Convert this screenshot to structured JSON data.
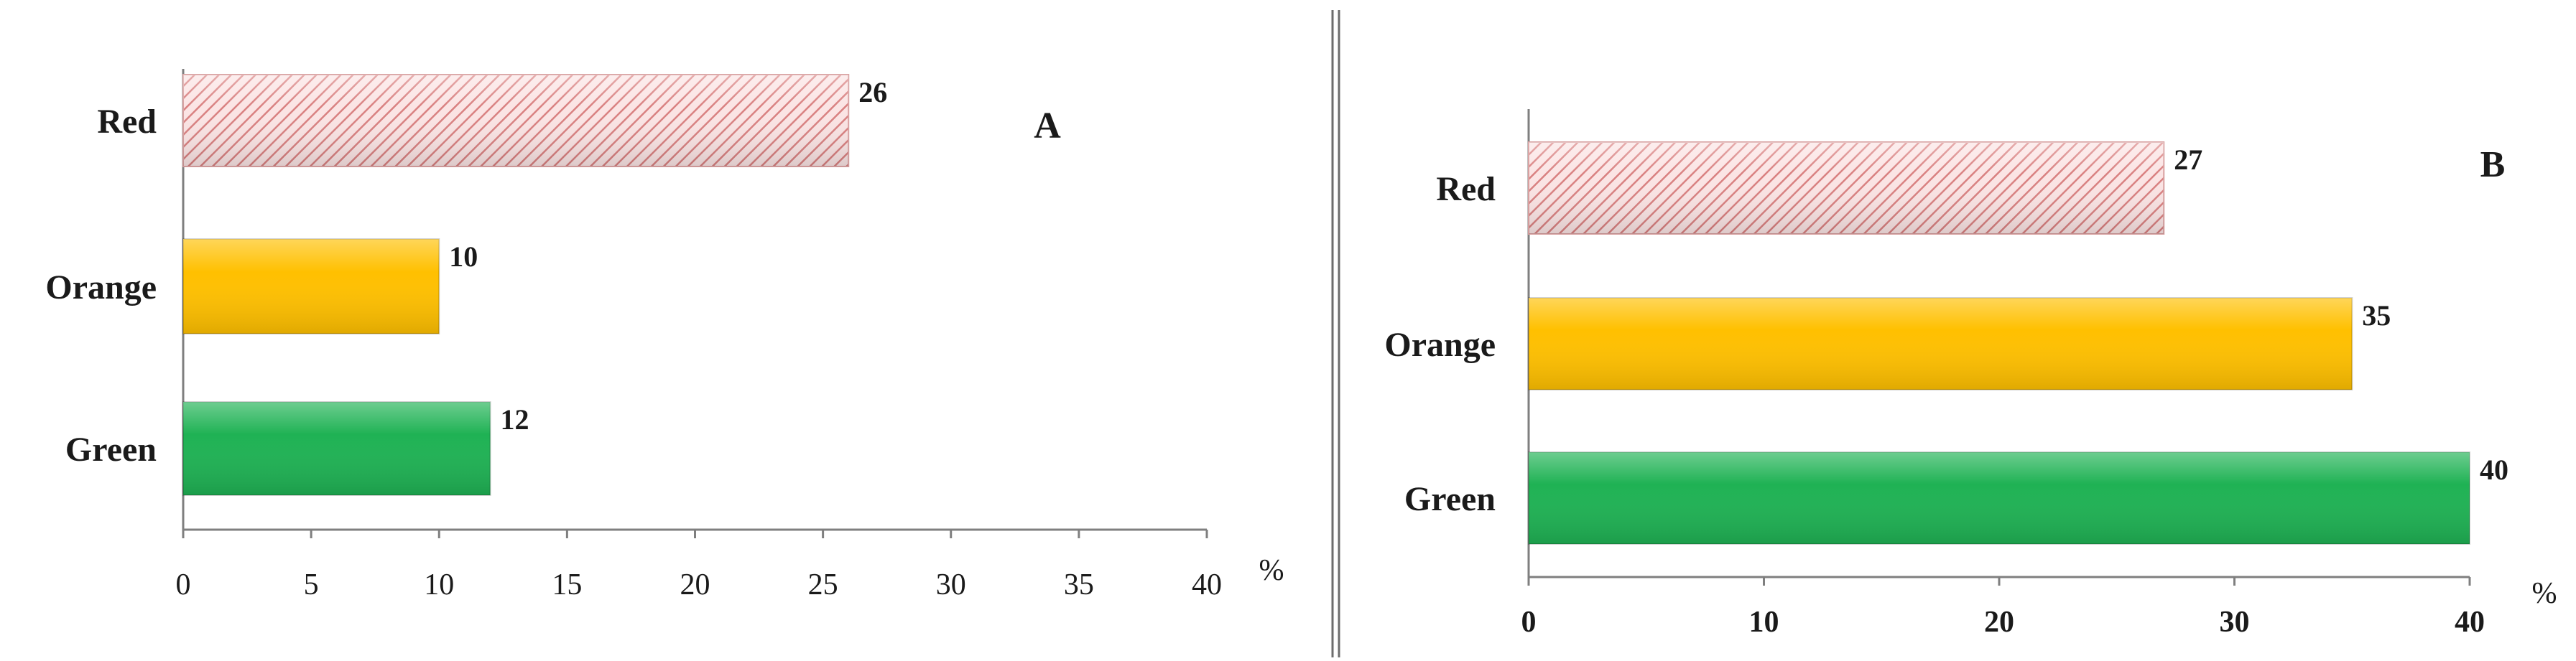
{
  "chart_data": [
    {
      "type": "bar",
      "orientation": "horizontal",
      "panel_label": "A",
      "categories": [
        "Red",
        "Orange",
        "Green"
      ],
      "values": [
        26,
        10,
        12
      ],
      "value_labels": [
        "26",
        "10",
        "12"
      ],
      "xlim": [
        0,
        40
      ],
      "xticks": [
        "0",
        "5",
        "10",
        "15",
        "20",
        "25",
        "30",
        "35",
        "40"
      ],
      "xtick_values": [
        0,
        5,
        10,
        15,
        20,
        25,
        30,
        35,
        40
      ],
      "unit": "%",
      "grid": false,
      "colors": [
        "#f2b8b8",
        "#ffc000",
        "#1fb254"
      ],
      "patterns": [
        "hatched",
        "solid",
        "solid"
      ]
    },
    {
      "type": "bar",
      "orientation": "horizontal",
      "panel_label": "B",
      "categories": [
        "Red",
        "Orange",
        "Green"
      ],
      "values": [
        27,
        35,
        40
      ],
      "value_labels": [
        "27",
        "35",
        "40"
      ],
      "xlim": [
        0,
        40
      ],
      "xticks": [
        "0",
        "10",
        "20",
        "30",
        "40"
      ],
      "xtick_values": [
        0,
        10,
        20,
        30,
        40
      ],
      "unit": "%",
      "grid": false,
      "colors": [
        "#f2b8b8",
        "#ffc000",
        "#1fb254"
      ],
      "patterns": [
        "hatched",
        "solid",
        "solid"
      ]
    }
  ]
}
